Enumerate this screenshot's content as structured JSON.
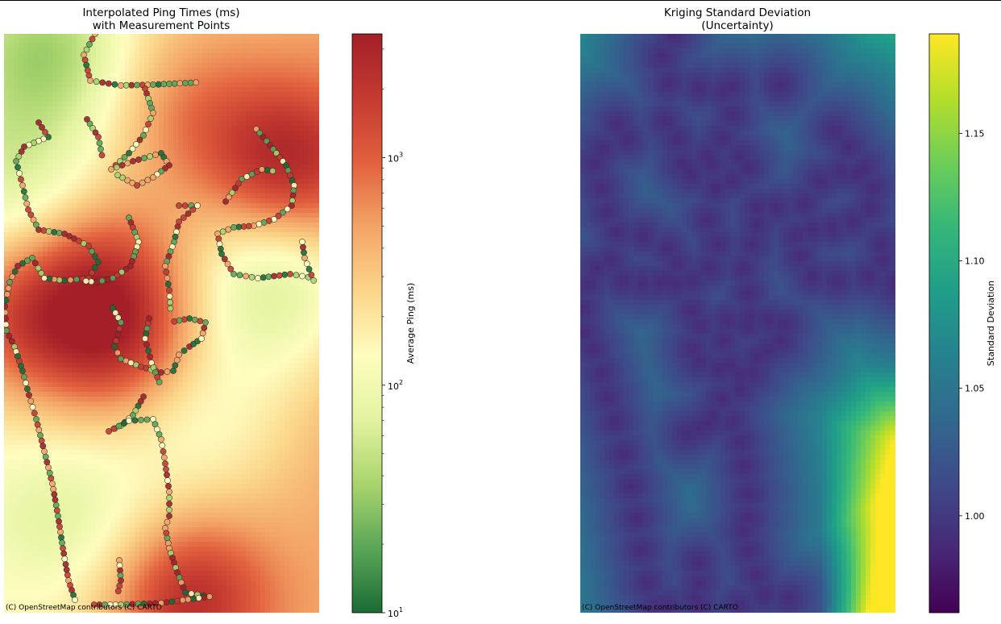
{
  "chart_data": [
    {
      "type": "heatmap",
      "title_line1": "Interpolated Ping Times (ms)",
      "title_line2": "with Measurement Points",
      "attribution": "(C) OpenStreetMap contributors (C) CARTO",
      "colorbar": {
        "label": "Average Ping (ms)",
        "scale": "log",
        "range": [
          10,
          3500
        ],
        "colormap": [
          "#1a6b35",
          "#5aa657",
          "#a9d46d",
          "#e3f3a0",
          "#fefdbf",
          "#fbd68a",
          "#f3a466",
          "#e2603e",
          "#c43a30",
          "#a51f28"
        ],
        "ticks": [
          {
            "value": 10,
            "base": "10",
            "exp": "1"
          },
          {
            "value": 100,
            "base": "10",
            "exp": "2"
          },
          {
            "value": 1000,
            "base": "10",
            "exp": "3"
          }
        ]
      },
      "measurement_points_legend": "with Measurement Points"
    },
    {
      "type": "heatmap",
      "title_line1": "Kriging Standard Deviation",
      "title_line2": "(Uncertainty)",
      "attribution": "(C) OpenStreetMap contributors (C) CARTO",
      "colorbar": {
        "label": "Standard Deviation",
        "scale": "linear",
        "range": [
          0.962,
          1.189
        ],
        "colormap": [
          "#440154",
          "#482878",
          "#3e4a89",
          "#31688e",
          "#26828e",
          "#1f9e89",
          "#35b779",
          "#6ece58",
          "#b5de2b",
          "#fde725"
        ],
        "ticks": [
          {
            "value": 1.0,
            "label": "1.00"
          },
          {
            "value": 1.05,
            "label": "1.05"
          },
          {
            "value": 1.1,
            "label": "1.10"
          },
          {
            "value": 1.15,
            "label": "1.15"
          }
        ]
      }
    }
  ]
}
